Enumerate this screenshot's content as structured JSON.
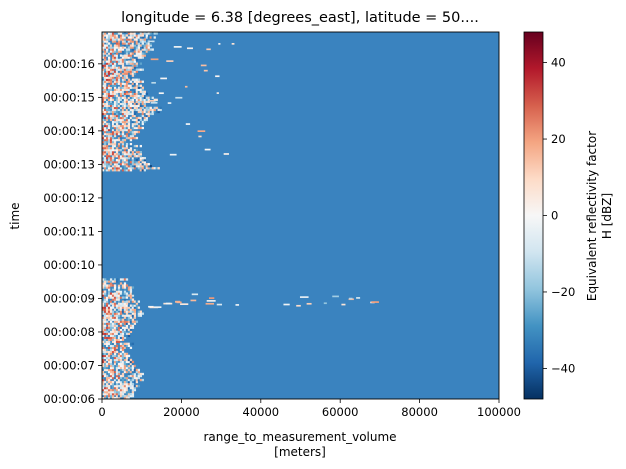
{
  "chart_data": {
    "type": "heatmap",
    "title": "longitude = 6.38 [degrees_east], latitude = 50....",
    "xlabel_line1": "range_to_measurement_volume",
    "xlabel_line2": "[meters]",
    "ylabel": "time",
    "xlim": [
      0,
      100000
    ],
    "x_ticks": [
      0,
      20000,
      40000,
      60000,
      80000,
      100000
    ],
    "x_tick_labels": [
      "0",
      "20000",
      "40000",
      "60000",
      "80000",
      "100000"
    ],
    "ylim_seconds": [
      6,
      16.95
    ],
    "y_ticks_seconds": [
      6,
      7,
      8,
      9,
      10,
      11,
      12,
      13,
      14,
      15,
      16
    ],
    "y_tick_labels": [
      "00:00:06",
      "00:00:07",
      "00:00:08",
      "00:00:09",
      "00:00:10",
      "00:00:11",
      "00:00:12",
      "00:00:13",
      "00:00:14",
      "00:00:15",
      "00:00:16"
    ],
    "colorbar": {
      "label_line1": "Equivalent reflectivity factor",
      "label_line2": "H [dBZ]",
      "range": [
        -48,
        48
      ],
      "ticks": [
        -40,
        -20,
        0,
        20,
        40
      ],
      "tick_labels": [
        "−40",
        "−20",
        "0",
        "20",
        "40"
      ],
      "colormap": "RdBu_r",
      "stops": [
        "#053061",
        "#2166ac",
        "#4393c3",
        "#92c5de",
        "#d1e5f0",
        "#f7f7f7",
        "#fddbc7",
        "#f4a582",
        "#d6604d",
        "#b2182b",
        "#67001f"
      ]
    },
    "background_dbz": -28,
    "background_color": "#3a83bf",
    "echo_regions": [
      {
        "x": [
          0,
          11000
        ],
        "t": [
          6.0,
          9.6
        ],
        "description": "dense near-range echoes"
      },
      {
        "x": [
          0,
          15000
        ],
        "t": [
          12.8,
          16.95
        ],
        "description": "dense near-range echoes"
      },
      {
        "x": [
          11000,
          70000
        ],
        "t": [
          8.7,
          9.1
        ],
        "description": "scattered clutter"
      }
    ]
  }
}
